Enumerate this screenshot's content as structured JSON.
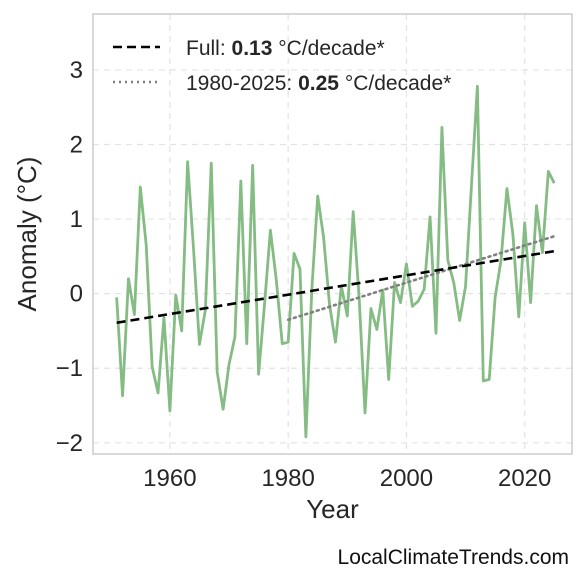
{
  "chart_data": {
    "type": "line",
    "xlabel": "Year",
    "ylabel": "Anomaly (°C)",
    "xlim": [
      1947,
      2028
    ],
    "ylim": [
      -2.15,
      3.75
    ],
    "x_ticks": [
      1960,
      1980,
      2000,
      2020
    ],
    "x_tick_labels": [
      "1960",
      "1980",
      "2000",
      "2020"
    ],
    "y_ticks": [
      -2,
      -1,
      0,
      1,
      2,
      3
    ],
    "y_tick_labels": [
      "−2",
      "−1",
      "0",
      "1",
      "2",
      "3"
    ],
    "grid": true,
    "legend_position": "top-left",
    "series": [
      {
        "color": "#84bc84",
        "x": [
          1951,
          1952,
          1953,
          1954,
          1955,
          1956,
          1957,
          1958,
          1959,
          1960,
          1961,
          1962,
          1963,
          1964,
          1965,
          1966,
          1967,
          1968,
          1969,
          1970,
          1971,
          1972,
          1973,
          1974,
          1975,
          1976,
          1977,
          1978,
          1979,
          1980,
          1981,
          1982,
          1983,
          1984,
          1985,
          1986,
          1987,
          1988,
          1989,
          1990,
          1991,
          1992,
          1993,
          1994,
          1995,
          1996,
          1997,
          1998,
          1999,
          2000,
          2001,
          2002,
          2003,
          2004,
          2005,
          2006,
          2007,
          2008,
          2009,
          2010,
          2011,
          2012,
          2013,
          2014,
          2015,
          2016,
          2017,
          2018,
          2019,
          2020,
          2021,
          2022,
          2023,
          2024,
          2025
        ],
        "y": [
          -0.05,
          -1.37,
          0.2,
          -0.28,
          1.43,
          0.65,
          -0.98,
          -1.33,
          -0.32,
          -1.57,
          -0.02,
          -0.5,
          1.77,
          0.6,
          -0.68,
          -0.22,
          1.75,
          -1.05,
          -1.55,
          -0.95,
          -0.58,
          1.51,
          -0.67,
          1.72,
          -1.08,
          -0.15,
          0.85,
          0.18,
          -0.67,
          -0.65,
          0.54,
          0.33,
          -1.92,
          0.05,
          1.31,
          0.75,
          -0.15,
          -0.65,
          0.1,
          -0.3,
          1.1,
          -0.05,
          -1.6,
          -0.2,
          -0.48,
          0.05,
          -1.15,
          0.15,
          -0.12,
          0.4,
          -0.17,
          -0.1,
          0.06,
          1.03,
          -0.53,
          2.23,
          0.45,
          0.15,
          -0.36,
          0.1,
          1.45,
          2.78,
          -1.17,
          -1.15,
          -0.05,
          0.45,
          1.41,
          0.8,
          -0.31,
          0.95,
          -0.12,
          1.18,
          0.55,
          1.64,
          1.48
        ]
      },
      {
        "name": "Full: 0.13°C/decade*",
        "legend_label": "Full:",
        "legend_value": "0.13",
        "legend_unit": "°C/decade*",
        "color": "#000000",
        "style": "dashed",
        "x": [
          1951,
          2025
        ],
        "y": [
          -0.39,
          0.57
        ]
      },
      {
        "name": "1980-2025: 0.25°C/decade*",
        "legend_label": "1980-2025:",
        "legend_value": "0.25",
        "legend_unit": "°C/decade*",
        "color": "#808080",
        "style": "dotted",
        "x": [
          1980,
          2025
        ],
        "y": [
          -0.35,
          0.77
        ]
      }
    ]
  },
  "source_label": "LocalClimateTrends.com"
}
